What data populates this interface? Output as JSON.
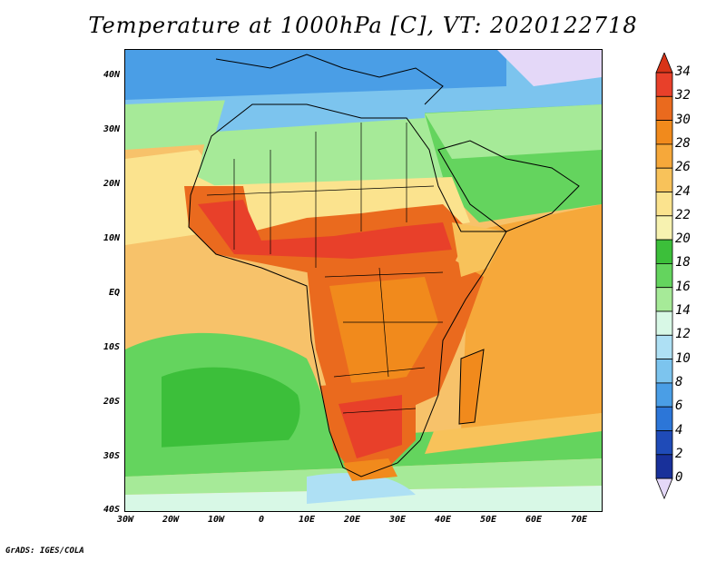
{
  "title": "Temperature at 1000hPa [C], VT: 2020122718",
  "footer": "GrADS: IGES/COLA",
  "map": {
    "projection": "lat-lon",
    "lon_range": [
      -30,
      75
    ],
    "lat_range": [
      -40,
      45
    ],
    "variable": "Temperature at 1000hPa",
    "units": "C",
    "valid_time": "2020122718",
    "lat_ticks": [
      "40N",
      "30N",
      "20N",
      "10N",
      "EQ",
      "10S",
      "20S",
      "30S",
      "40S"
    ],
    "lon_ticks": [
      "30W",
      "20W",
      "10W",
      "0",
      "10E",
      "20E",
      "30E",
      "40E",
      "50E",
      "60E",
      "70E"
    ]
  },
  "colorbar": {
    "labels": [
      "34",
      "32",
      "30",
      "28",
      "26",
      "24",
      "22",
      "20",
      "18",
      "16",
      "14",
      "12",
      "10",
      "8",
      "6",
      "4",
      "2",
      "0"
    ],
    "colors": [
      "#e8402a",
      "#ea6a1e",
      "#f18a1c",
      "#f6a83a",
      "#f8c25a",
      "#fbe38e",
      "#f7f2b0",
      "#3cbf3a",
      "#64d45e",
      "#a6ea98",
      "#d8f8e6",
      "#aee0f4",
      "#7cc4ee",
      "#4a9ee6",
      "#2c76d8",
      "#1f4bb8",
      "#18309a",
      "#0c1a6e"
    ],
    "top_color": "#d83418",
    "bottom_color": "#e4d8f8"
  }
}
